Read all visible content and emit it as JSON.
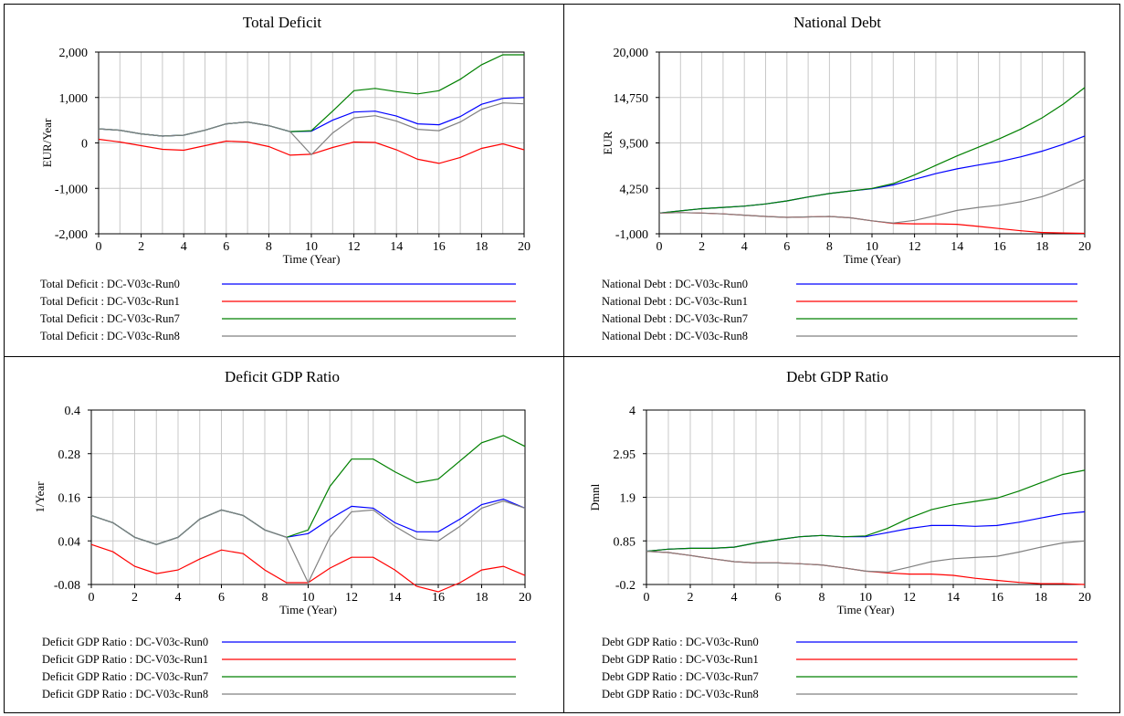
{
  "chart_data": [
    {
      "type": "line",
      "title": "Total Deficit",
      "xlabel": "Time (Year)",
      "ylabel": "EUR/Year",
      "xlim": [
        0,
        20
      ],
      "ylim": [
        -2000,
        2000
      ],
      "x_ticks": [
        0,
        2,
        4,
        6,
        8,
        10,
        12,
        14,
        16,
        18,
        20
      ],
      "y_ticks": [
        -2000,
        -1000,
        0,
        1000,
        2000
      ],
      "y_tick_labels": [
        "-2,000",
        "-1,000",
        "0",
        "1,000",
        "2,000"
      ],
      "grid": true,
      "legend_position": "bottom",
      "x": [
        0,
        1,
        2,
        3,
        4,
        5,
        6,
        7,
        8,
        9,
        10,
        11,
        12,
        13,
        14,
        15,
        16,
        17,
        18,
        19,
        20
      ],
      "series": [
        {
          "name": "Total Deficit : DC-V03c-Run0",
          "color": "#0000ff",
          "values": [
            310,
            280,
            200,
            150,
            170,
            280,
            420,
            460,
            380,
            250,
            260,
            500,
            680,
            700,
            590,
            420,
            400,
            580,
            850,
            980,
            1000
          ]
        },
        {
          "name": "Total Deficit : DC-V03c-Run1",
          "color": "#ff0000",
          "values": [
            80,
            20,
            -60,
            -140,
            -160,
            -60,
            40,
            20,
            -80,
            -270,
            -250,
            -100,
            20,
            10,
            -150,
            -360,
            -450,
            -320,
            -120,
            -20,
            -150
          ]
        },
        {
          "name": "Total Deficit : DC-V03c-Run7",
          "color": "#008000",
          "values": [
            310,
            280,
            200,
            150,
            170,
            280,
            420,
            460,
            380,
            250,
            270,
            700,
            1150,
            1200,
            1130,
            1080,
            1150,
            1400,
            1720,
            1940,
            1940
          ]
        },
        {
          "name": "Total Deficit : DC-V03c-Run8",
          "color": "#808080",
          "values": [
            310,
            280,
            200,
            150,
            170,
            280,
            420,
            460,
            380,
            250,
            -260,
            220,
            550,
            600,
            480,
            300,
            270,
            460,
            740,
            880,
            860
          ]
        }
      ]
    },
    {
      "type": "line",
      "title": "National Debt",
      "xlabel": "Time (Year)",
      "ylabel": "EUR",
      "xlim": [
        0,
        20
      ],
      "ylim": [
        -1000,
        20000
      ],
      "x_ticks": [
        0,
        2,
        4,
        6,
        8,
        10,
        12,
        14,
        16,
        18,
        20
      ],
      "y_ticks": [
        -1000,
        4250,
        9500,
        14750,
        20000
      ],
      "y_tick_labels": [
        "-1,000",
        "4,250",
        "9,500",
        "14,750",
        "20,000"
      ],
      "grid": true,
      "legend_position": "bottom",
      "x": [
        0,
        1,
        2,
        3,
        4,
        5,
        6,
        7,
        8,
        9,
        10,
        11,
        12,
        13,
        14,
        15,
        16,
        17,
        18,
        19,
        20
      ],
      "series": [
        {
          "name": "National Debt : DC-V03c-Run0",
          "color": "#0000ff",
          "values": [
            1400,
            1650,
            1900,
            2050,
            2200,
            2450,
            2800,
            3250,
            3650,
            3950,
            4200,
            4650,
            5300,
            5950,
            6500,
            6950,
            7350,
            7900,
            8550,
            9350,
            10300
          ]
        },
        {
          "name": "National Debt : DC-V03c-Run1",
          "color": "#ff0000",
          "values": [
            1400,
            1450,
            1400,
            1300,
            1150,
            1000,
            900,
            950,
            1000,
            850,
            500,
            200,
            150,
            150,
            100,
            -150,
            -400,
            -650,
            -850,
            -900,
            -950
          ]
        },
        {
          "name": "National Debt : DC-V03c-Run7",
          "color": "#008000",
          "values": [
            1400,
            1650,
            1900,
            2050,
            2200,
            2450,
            2800,
            3250,
            3650,
            3950,
            4250,
            4800,
            5800,
            6900,
            8000,
            9000,
            10000,
            11100,
            12400,
            14000,
            15900
          ]
        },
        {
          "name": "National Debt : DC-V03c-Run8",
          "color": "#808080",
          "values": [
            1400,
            1450,
            1400,
            1300,
            1150,
            1000,
            900,
            950,
            1000,
            850,
            500,
            250,
            550,
            1100,
            1700,
            2050,
            2300,
            2700,
            3300,
            4200,
            5300
          ]
        }
      ]
    },
    {
      "type": "line",
      "title": "Deficit GDP Ratio",
      "xlabel": "Time (Year)",
      "ylabel": "1/Year",
      "xlim": [
        0,
        20
      ],
      "ylim": [
        -0.08,
        0.4
      ],
      "x_ticks": [
        0,
        2,
        4,
        6,
        8,
        10,
        12,
        14,
        16,
        18,
        20
      ],
      "y_ticks": [
        -0.08,
        0.04,
        0.16,
        0.28,
        0.4
      ],
      "y_tick_labels": [
        "-0.08",
        "0.04",
        "0.16",
        "0.28",
        "0.4"
      ],
      "grid": true,
      "legend_position": "bottom",
      "x": [
        0,
        1,
        2,
        3,
        4,
        5,
        6,
        7,
        8,
        9,
        10,
        11,
        12,
        13,
        14,
        15,
        16,
        17,
        18,
        19,
        20
      ],
      "series": [
        {
          "name": "Deficit GDP Ratio : DC-V03c-Run0",
          "color": "#0000ff",
          "values": [
            0.11,
            0.09,
            0.05,
            0.03,
            0.05,
            0.1,
            0.125,
            0.11,
            0.07,
            0.05,
            0.06,
            0.1,
            0.135,
            0.13,
            0.09,
            0.065,
            0.065,
            0.1,
            0.14,
            0.155,
            0.13
          ]
        },
        {
          "name": "Deficit GDP Ratio : DC-V03c-Run1",
          "color": "#ff0000",
          "values": [
            0.03,
            0.01,
            -0.03,
            -0.05,
            -0.04,
            -0.01,
            0.015,
            0.005,
            -0.04,
            -0.075,
            -0.075,
            -0.035,
            -0.005,
            -0.005,
            -0.04,
            -0.085,
            -0.1,
            -0.075,
            -0.04,
            -0.03,
            -0.055
          ]
        },
        {
          "name": "Deficit GDP Ratio : DC-V03c-Run7",
          "color": "#008000",
          "values": [
            0.11,
            0.09,
            0.05,
            0.03,
            0.05,
            0.1,
            0.125,
            0.11,
            0.07,
            0.05,
            0.07,
            0.19,
            0.265,
            0.265,
            0.23,
            0.2,
            0.21,
            0.26,
            0.31,
            0.33,
            0.3
          ]
        },
        {
          "name": "Deficit GDP Ratio : DC-V03c-Run8",
          "color": "#808080",
          "values": [
            0.11,
            0.09,
            0.05,
            0.03,
            0.05,
            0.1,
            0.125,
            0.11,
            0.07,
            0.05,
            -0.075,
            0.05,
            0.12,
            0.125,
            0.08,
            0.045,
            0.04,
            0.08,
            0.13,
            0.15,
            0.13
          ]
        }
      ]
    },
    {
      "type": "line",
      "title": "Debt GDP Ratio",
      "xlabel": "Time (Year)",
      "ylabel": "Dmnl",
      "xlim": [
        0,
        20
      ],
      "ylim": [
        -0.2,
        4
      ],
      "x_ticks": [
        0,
        2,
        4,
        6,
        8,
        10,
        12,
        14,
        16,
        18,
        20
      ],
      "y_ticks": [
        -0.2,
        0.85,
        1.9,
        2.95,
        4
      ],
      "y_tick_labels": [
        "-0.2",
        "0.85",
        "1.9",
        "2.95",
        "4"
      ],
      "grid": true,
      "legend_position": "bottom",
      "x": [
        0,
        1,
        2,
        3,
        4,
        5,
        6,
        7,
        8,
        9,
        10,
        11,
        12,
        13,
        14,
        15,
        16,
        17,
        18,
        19,
        20
      ],
      "series": [
        {
          "name": "Debt GDP Ratio : DC-V03c-Run0",
          "color": "#0000ff",
          "values": [
            0.6,
            0.65,
            0.67,
            0.67,
            0.7,
            0.8,
            0.88,
            0.95,
            0.98,
            0.95,
            0.95,
            1.05,
            1.15,
            1.22,
            1.22,
            1.2,
            1.22,
            1.3,
            1.4,
            1.5,
            1.55
          ]
        },
        {
          "name": "Debt GDP Ratio : DC-V03c-Run1",
          "color": "#ff0000",
          "values": [
            0.6,
            0.57,
            0.5,
            0.42,
            0.35,
            0.32,
            0.32,
            0.3,
            0.27,
            0.2,
            0.12,
            0.08,
            0.05,
            0.05,
            0.02,
            -0.05,
            -0.1,
            -0.15,
            -0.18,
            -0.18,
            -0.2
          ]
        },
        {
          "name": "Debt GDP Ratio : DC-V03c-Run7",
          "color": "#008000",
          "values": [
            0.6,
            0.65,
            0.67,
            0.67,
            0.7,
            0.8,
            0.88,
            0.95,
            0.98,
            0.95,
            0.97,
            1.15,
            1.4,
            1.6,
            1.72,
            1.8,
            1.88,
            2.05,
            2.25,
            2.45,
            2.55
          ]
        },
        {
          "name": "Debt GDP Ratio : DC-V03c-Run8",
          "color": "#808080",
          "values": [
            0.6,
            0.57,
            0.5,
            0.42,
            0.35,
            0.32,
            0.32,
            0.3,
            0.27,
            0.2,
            0.12,
            0.1,
            0.22,
            0.35,
            0.42,
            0.45,
            0.48,
            0.58,
            0.7,
            0.8,
            0.85
          ]
        }
      ]
    }
  ]
}
